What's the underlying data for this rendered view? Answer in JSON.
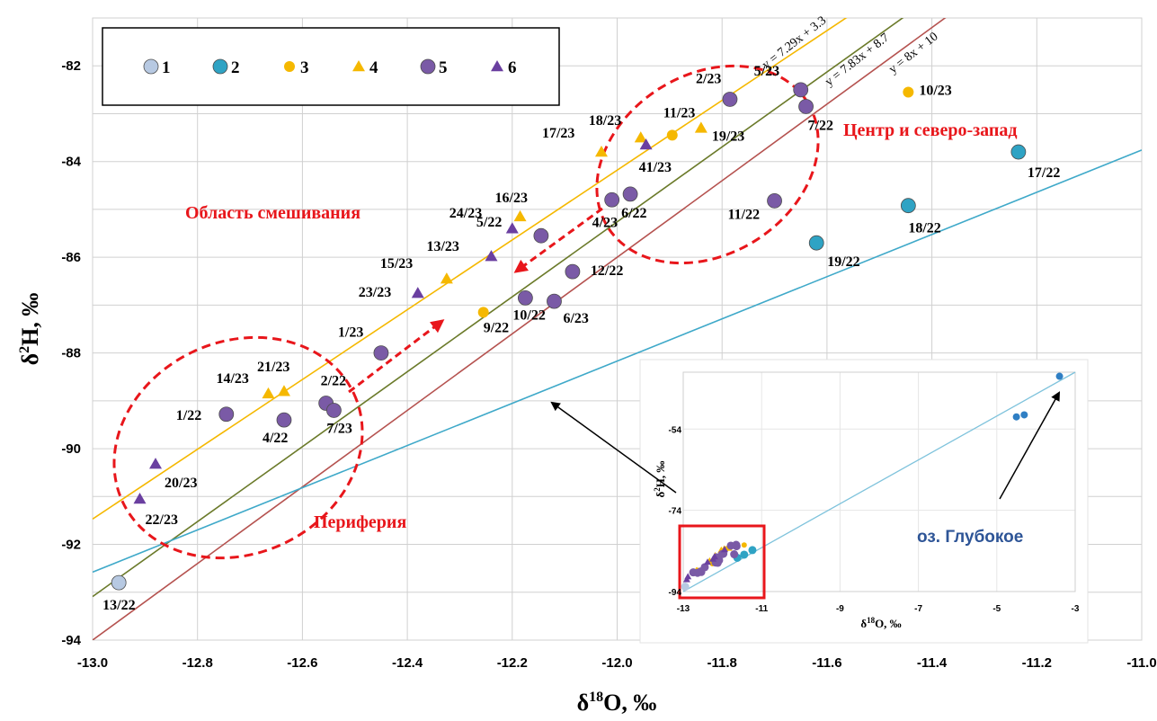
{
  "chart_data": {
    "type": "scatter",
    "xlabel": "δ18O, ‰",
    "ylabel": "δ2H, ‰",
    "xlim": [
      -13.0,
      -11.0
    ],
    "ylim": [
      -94,
      -81
    ],
    "xticks": [
      -13.0,
      -12.8,
      -12.6,
      -12.4,
      -12.2,
      -12.0,
      -11.8,
      -11.6,
      -11.4,
      -11.2,
      -11.0
    ],
    "xtick_labels": [
      "-13.0",
      "-12.8",
      "-12.6",
      "-12.4",
      "-12.2",
      "-12.0",
      "-11.8",
      "-11.6",
      "-11.4",
      "-11.2",
      "-11.0"
    ],
    "yticks": [
      -94,
      -92,
      -90,
      -88,
      -86,
      -84,
      -82
    ],
    "ytick_labels": [
      "-94",
      "-92",
      "-90",
      "-88",
      "-86",
      "-84",
      "-82"
    ],
    "grid": true,
    "legend_position": "top-left",
    "legend": [
      {
        "label": "1",
        "marker": "circle",
        "color": "#b7c9e2"
      },
      {
        "label": "2",
        "marker": "circle",
        "color": "#2fa3c4"
      },
      {
        "label": "3",
        "marker": "circle-small",
        "color": "#f5b800"
      },
      {
        "label": "4",
        "marker": "triangle",
        "color": "#f5b800"
      },
      {
        "label": "5",
        "marker": "circle",
        "color": "#7a5aa6"
      },
      {
        "label": "6",
        "marker": "triangle",
        "color": "#6a3fa0"
      }
    ],
    "series": [
      {
        "legend": "1",
        "points": [
          {
            "x": -12.95,
            "y": -92.8,
            "label": "13/22"
          }
        ]
      },
      {
        "legend": "2",
        "points": [
          {
            "x": -11.235,
            "y": -83.8,
            "label": "17/22"
          },
          {
            "x": -11.445,
            "y": -84.92,
            "label": "18/22"
          },
          {
            "x": -11.62,
            "y": -85.7,
            "label": "19/22"
          }
        ]
      },
      {
        "legend": "3",
        "points": [
          {
            "x": -11.445,
            "y": -82.55,
            "label": "10/23"
          },
          {
            "x": -11.895,
            "y": -83.45,
            "label": "11/23"
          },
          {
            "x": -12.255,
            "y": -87.15,
            "label": "9/22"
          }
        ]
      },
      {
        "legend": "4",
        "points": [
          {
            "x": -12.03,
            "y": -83.8,
            "label": "17/23"
          },
          {
            "x": -11.955,
            "y": -83.5,
            "label": "18/23"
          },
          {
            "x": -11.84,
            "y": -83.3,
            "label": "19/23"
          },
          {
            "x": -12.185,
            "y": -85.15,
            "label": "16/23"
          },
          {
            "x": -12.325,
            "y": -86.45,
            "label": "15/23"
          },
          {
            "x": -12.665,
            "y": -88.85,
            "label": "14/23"
          },
          {
            "x": -12.635,
            "y": -88.8,
            "label": "21/23"
          }
        ]
      },
      {
        "legend": "5",
        "points": [
          {
            "x": -11.785,
            "y": -82.7,
            "label": "2/23"
          },
          {
            "x": -11.65,
            "y": -82.5,
            "label": "5/23"
          },
          {
            "x": -11.64,
            "y": -82.85,
            "label": "7/22"
          },
          {
            "x": -11.7,
            "y": -84.82,
            "label": "11/22"
          },
          {
            "x": -12.01,
            "y": -84.8,
            "label": "4/23"
          },
          {
            "x": -11.975,
            "y": -84.68,
            "label": "6/22"
          },
          {
            "x": -12.145,
            "y": -85.55,
            "label": "5/22"
          },
          {
            "x": -12.085,
            "y": -86.3,
            "label": "12/22"
          },
          {
            "x": -12.175,
            "y": -86.85,
            "label": "10/22"
          },
          {
            "x": -12.12,
            "y": -86.92,
            "label": "6/23"
          },
          {
            "x": -12.45,
            "y": -88.0,
            "label": "1/23"
          },
          {
            "x": -12.555,
            "y": -89.05,
            "label": "2/22"
          },
          {
            "x": -12.54,
            "y": -89.2,
            "label": "7/23"
          },
          {
            "x": -12.745,
            "y": -89.28,
            "label": "1/22"
          },
          {
            "x": -12.635,
            "y": -89.4,
            "label": "4/22"
          }
        ]
      },
      {
        "legend": "6",
        "points": [
          {
            "x": -11.945,
            "y": -83.65,
            "label": "41/23"
          },
          {
            "x": -12.2,
            "y": -85.4,
            "label": "24/23"
          },
          {
            "x": -12.24,
            "y": -85.98,
            "label": "13/23"
          },
          {
            "x": -12.38,
            "y": -86.75,
            "label": "23/23"
          },
          {
            "x": -12.88,
            "y": -90.32,
            "label": "20/23"
          },
          {
            "x": -12.91,
            "y": -91.05,
            "label": "22/23"
          }
        ]
      }
    ],
    "lines": [
      {
        "equation": "y = 7.29x + 3.3",
        "slope": 7.29,
        "intercept": 3.3,
        "color": "#f5b800"
      },
      {
        "equation": "y = 7.83x + 8.7",
        "slope": 7.83,
        "intercept": 8.7,
        "color": "#6b7a2a"
      },
      {
        "equation": "y = 8x + 10",
        "slope": 8,
        "intercept": 10,
        "color": "#b5524f"
      },
      {
        "slope": 4.41,
        "intercept": -35.25,
        "color": "#3fa9c9"
      }
    ],
    "annotations": [
      "Область смешивания",
      "Центр и северо-запад",
      "Периферия",
      "оз. Глубокое"
    ],
    "inset": {
      "xlabel": "δ18O, ‰",
      "ylabel": "δ2H, ‰",
      "xtick_labels": [
        "-13",
        "-11",
        "-9",
        "-7",
        "-5",
        "-3"
      ],
      "ytick_labels": [
        "-54",
        "-74",
        "-94"
      ],
      "lake_points": [
        {
          "x": -3.4,
          "y": -41
        },
        {
          "x": -4.5,
          "y": -51
        },
        {
          "x": -4.3,
          "y": -50.5
        }
      ]
    }
  }
}
